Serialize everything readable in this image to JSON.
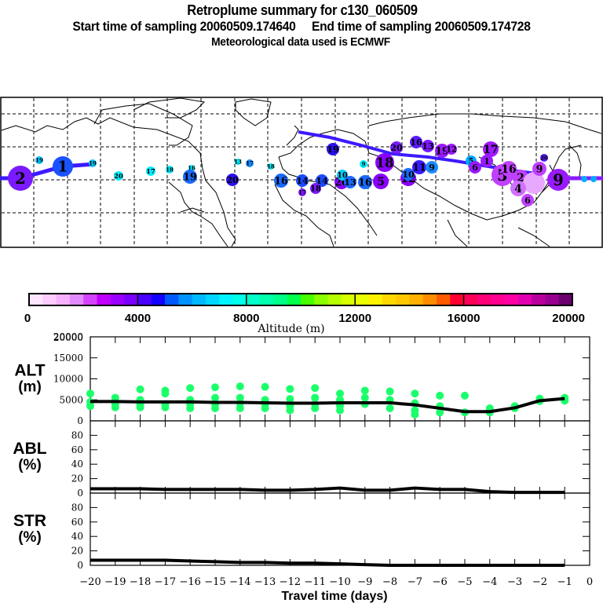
{
  "header": {
    "title": "Retroplume summary for c130_060509",
    "sampling_line": "Start time of sampling 20060509.174640     End time of sampling 20060509.174728",
    "start_time": "20060509.174640",
    "end_time": "20060509.174728",
    "met_line": "Meteorological data used is ECMWF"
  },
  "map": {
    "description": "World map with retroplume trajectory circles labeled by travel day, colored by altitude",
    "line_color_main": "#3c1aff",
    "labeled_points": [
      {
        "label": "2",
        "color": "#7a1aff",
        "size": "large",
        "region": "N Pacific west edge"
      },
      {
        "label": "1",
        "color": "#1a52ff",
        "size": "large",
        "region": "N Pacific"
      },
      {
        "label": "19",
        "color": "#00c8ff",
        "size": "small",
        "region": "Alaska"
      },
      {
        "label": "19",
        "color": "#00c8ff",
        "size": "small",
        "region": "W Canada coast"
      },
      {
        "label": "20",
        "color": "#00eeff",
        "size": "small",
        "region": "Central Canada"
      },
      {
        "label": "17",
        "color": "#00eeff",
        "size": "small",
        "region": "Great Lakes"
      },
      {
        "label": "18",
        "color": "#00eeff",
        "size": "small",
        "region": "Quebec"
      },
      {
        "label": "16",
        "color": "#00eeff",
        "size": "small",
        "region": "Newfoundland"
      },
      {
        "label": "19",
        "color": "#1a6aff",
        "size": "medium",
        "region": "US East Coast"
      },
      {
        "label": "20",
        "color": "#2a10ee",
        "size": "medium",
        "region": "Mid Atlantic"
      },
      {
        "label": "13",
        "color": "#00eeff",
        "size": "small",
        "region": "N Atlantic"
      },
      {
        "label": "17",
        "color": "#1a8aff",
        "size": "small",
        "region": "N Atlantic"
      },
      {
        "label": "18",
        "color": "#00eeff",
        "size": "small",
        "region": "N Atlantic east"
      },
      {
        "label": "16",
        "color": "#1a6aff",
        "size": "medium",
        "region": "Iberia"
      },
      {
        "label": "14",
        "color": "#1a4aff",
        "size": "medium",
        "region": "Mediterranean"
      },
      {
        "label": "10",
        "color": "#00ccff",
        "size": "medium",
        "region": "Balkans"
      },
      {
        "label": "18",
        "color": "#8a00ff",
        "size": "large",
        "region": "Caspian"
      },
      {
        "label": "20",
        "color": "#7a1aff",
        "size": "medium",
        "region": "Russia"
      },
      {
        "label": "16",
        "color": "#5a1aff",
        "size": "medium",
        "region": "W Siberia"
      },
      {
        "label": "11",
        "color": "#3a1aff",
        "size": "medium",
        "region": "Kazakhstan"
      },
      {
        "label": "19",
        "color": "#9a1aff",
        "size": "medium",
        "region": "Siberia"
      },
      {
        "label": "17",
        "color": "#a01aff",
        "size": "medium",
        "region": "Mongolia north"
      },
      {
        "label": "16",
        "color": "#a01aff",
        "size": "medium",
        "region": "N China"
      },
      {
        "label": "5",
        "color": "#c040ff",
        "size": "large",
        "region": "NW China"
      },
      {
        "label": "6",
        "color": "#c040ff",
        "size": "medium",
        "region": "E China"
      },
      {
        "label": "9",
        "color": "#9a1aff",
        "size": "large",
        "region": "NW Pacific"
      },
      {
        "label": "11",
        "color": "#e9a8ff",
        "size": "small",
        "region": "Japan"
      }
    ]
  },
  "colorbar": {
    "label": "Altitude (m)",
    "ticks": [
      "0",
      "4000",
      "8000",
      "12000",
      "16000",
      "20000"
    ],
    "colors": [
      "#ffe6ff",
      "#ffccff",
      "#f5b0ff",
      "#e48aff",
      "#d444ff",
      "#c000ff",
      "#9b00ff",
      "#7a00ff",
      "#4a00ff",
      "#1400ff",
      "#0058ff",
      "#0092ff",
      "#00b8ff",
      "#00d6ff",
      "#00f4ff",
      "#00ffea",
      "#00ffc8",
      "#00ffaa",
      "#00ff88",
      "#00ff4a",
      "#48ff00",
      "#8aff00",
      "#b6ff00",
      "#d8ff00",
      "#eaff00",
      "#fff200",
      "#ffd800",
      "#ffc800",
      "#ffb000",
      "#ff8c00",
      "#ff5a00",
      "#ff0030",
      "#ff0058",
      "#ff0078",
      "#ff0090",
      "#ff00a4",
      "#e000b0",
      "#b8009c",
      "#980090",
      "#6a006c"
    ]
  },
  "chart_data": [
    {
      "type": "line",
      "panel": "ALT",
      "ylabel": "ALT (m)",
      "ylabel_line1": "ALT",
      "ylabel_line2": "(m)",
      "ylim": [
        0,
        20000
      ],
      "yticks": [
        "0",
        "5000",
        "10000",
        "15000",
        "20000"
      ],
      "x": [
        -20,
        -19,
        -18,
        -17,
        -16,
        -15,
        -14,
        -13,
        -12,
        -11,
        -10,
        -9,
        -8,
        -7,
        -6,
        -5,
        -4,
        -3,
        -2,
        -1
      ],
      "series": [
        {
          "name": "mean altitude",
          "color": "#000000",
          "values": [
            4600,
            4600,
            4500,
            4500,
            4500,
            4400,
            4400,
            4300,
            4200,
            4200,
            4300,
            4300,
            4300,
            3800,
            3000,
            2200,
            2200,
            3100,
            4800,
            5300
          ]
        }
      ],
      "scatter": {
        "color": "#1aff6a",
        "points": [
          [
            -20,
            6500
          ],
          [
            -20,
            4500
          ],
          [
            -20,
            3500
          ],
          [
            -19,
            5500
          ],
          [
            -19,
            4000
          ],
          [
            -19,
            3200
          ],
          [
            -18,
            7500
          ],
          [
            -18,
            5000
          ],
          [
            -18,
            3800
          ],
          [
            -18,
            3200
          ],
          [
            -17,
            7200
          ],
          [
            -17,
            6500
          ],
          [
            -17,
            4000
          ],
          [
            -17,
            3200
          ],
          [
            -16,
            7800
          ],
          [
            -16,
            5000
          ],
          [
            -16,
            4000
          ],
          [
            -16,
            3000
          ],
          [
            -15,
            8000
          ],
          [
            -15,
            5500
          ],
          [
            -15,
            4000
          ],
          [
            -15,
            3000
          ],
          [
            -14,
            8200
          ],
          [
            -14,
            5500
          ],
          [
            -14,
            4200
          ],
          [
            -14,
            3000
          ],
          [
            -13,
            8100
          ],
          [
            -13,
            5000
          ],
          [
            -13,
            4000
          ],
          [
            -13,
            3000
          ],
          [
            -12,
            7600
          ],
          [
            -12,
            5200
          ],
          [
            -12,
            3500
          ],
          [
            -12,
            2500
          ],
          [
            -11,
            7800
          ],
          [
            -11,
            5500
          ],
          [
            -11,
            4000
          ],
          [
            -11,
            3000
          ],
          [
            -10,
            6500
          ],
          [
            -10,
            5000
          ],
          [
            -10,
            3500
          ],
          [
            -10,
            2500
          ],
          [
            -9,
            7200
          ],
          [
            -9,
            5500
          ],
          [
            -9,
            4000
          ],
          [
            -8,
            7000
          ],
          [
            -8,
            5000
          ],
          [
            -8,
            3000
          ],
          [
            -7,
            6500
          ],
          [
            -7,
            4200
          ],
          [
            -7,
            2500
          ],
          [
            -7,
            1500
          ],
          [
            -6,
            6000
          ],
          [
            -6,
            3500
          ],
          [
            -6,
            2000
          ],
          [
            -5,
            6000
          ],
          [
            -5,
            2000
          ],
          [
            -4,
            3000
          ],
          [
            -4,
            2000
          ],
          [
            -3,
            3500
          ],
          [
            -3,
            3000
          ],
          [
            -2,
            5300
          ],
          [
            -2,
            4700
          ],
          [
            -1,
            5500
          ],
          [
            -1,
            4800
          ]
        ]
      }
    },
    {
      "type": "line",
      "panel": "ABL",
      "ylabel": "ABL (%)",
      "ylabel_line1": "ABL",
      "ylabel_line2": "(%)",
      "ylim": [
        0,
        100
      ],
      "yticks": [
        "0",
        "20",
        "40",
        "60",
        "80"
      ],
      "x": [
        -20,
        -19,
        -18,
        -17,
        -16,
        -15,
        -14,
        -13,
        -12,
        -11,
        -10,
        -9,
        -8,
        -7,
        -6,
        -5,
        -4,
        -3,
        -2,
        -1
      ],
      "series": [
        {
          "name": "ABL fraction",
          "color": "#000000",
          "values": [
            6,
            6,
            6,
            5,
            5,
            5,
            5,
            4,
            4,
            5,
            7,
            4,
            4,
            7,
            5,
            5,
            2,
            1,
            1,
            1
          ]
        }
      ]
    },
    {
      "type": "line",
      "panel": "STR",
      "ylabel": "STR (%)",
      "ylabel_line1": "STR",
      "ylabel_line2": "(%)",
      "ylim": [
        0,
        100
      ],
      "yticks": [
        "0",
        "20",
        "40",
        "60",
        "80"
      ],
      "x": [
        -20,
        -19,
        -18,
        -17,
        -16,
        -15,
        -14,
        -13,
        -12,
        -11,
        -10,
        -9,
        -8,
        -7,
        -6,
        -5,
        -4,
        -3,
        -2,
        -1
      ],
      "series": [
        {
          "name": "stratospheric fraction",
          "color": "#000000",
          "values": [
            7,
            7,
            7,
            7,
            6,
            5,
            4,
            4,
            3,
            3,
            2,
            1,
            0,
            0,
            0,
            0,
            0,
            0,
            0,
            0
          ]
        }
      ],
      "xlabel": "Travel time (days)",
      "xlim": [
        -20,
        0
      ],
      "xticks": [
        "-20",
        "-19",
        "-18",
        "-17",
        "-16",
        "-15",
        "-14",
        "-13",
        "-12",
        "-11",
        "-10",
        "-9",
        "-8",
        "-7",
        "-6",
        "-5",
        "-4",
        "-3",
        "-2",
        "-1",
        "0"
      ]
    }
  ]
}
